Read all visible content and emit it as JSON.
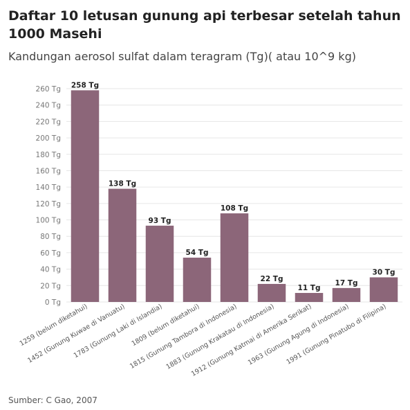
{
  "header": {
    "title": "Daftar 10 letusan gunung api terbesar setelah tahun 1000 Masehi",
    "subtitle": "Kandungan aerosol sulfat dalam teragram (Tg)( atau 10^9 kg)"
  },
  "footer": {
    "source": "Sumber: C Gao, 2007"
  },
  "colors": {
    "bar": "#8c6679",
    "grid": "#e6e6e6"
  },
  "chart_data": {
    "type": "bar",
    "title": "Daftar 10 letusan gunung api terbesar setelah tahun 1000 Masehi",
    "subtitle": "Kandungan aerosol sulfat dalam teragram (Tg)( atau 10^9 kg)",
    "categories": [
      "1259 (belum diketahui)",
      "1452 (Gunung Kuwae di Vanuatu)",
      "1783 (Gunung Laki di Islandia)",
      "1809 (belum diketahui)",
      "1815 (Gunung Tambora di Indonesia)",
      "1883 (Gunung Krakatau di Indonesia)",
      "1912 (Gunung Katmai di Amerika Serikat)",
      "1963 (Gunung Agung di Indonesia)",
      "1991 (Gunung Pinatubo di Filipina)"
    ],
    "values": [
      258,
      138,
      93,
      54,
      108,
      22,
      11,
      17,
      30
    ],
    "data_labels": [
      "258 Tg",
      "138 Tg",
      "93 Tg",
      "54 Tg",
      "108 Tg",
      "22 Tg",
      "11 Tg",
      "17 Tg",
      "30 Tg"
    ],
    "y_ticks": [
      0,
      20,
      40,
      60,
      80,
      100,
      120,
      140,
      160,
      180,
      200,
      220,
      240,
      260
    ],
    "y_tick_labels": [
      "0 Tg",
      "20 Tg",
      "40 Tg",
      "60 Tg",
      "80 Tg",
      "100 Tg",
      "120 Tg",
      "140 Tg",
      "160 Tg",
      "180 Tg",
      "200 Tg",
      "220 Tg",
      "240 Tg",
      "260 Tg"
    ],
    "ylim": [
      0,
      260
    ],
    "grid": true,
    "legend": "none"
  }
}
